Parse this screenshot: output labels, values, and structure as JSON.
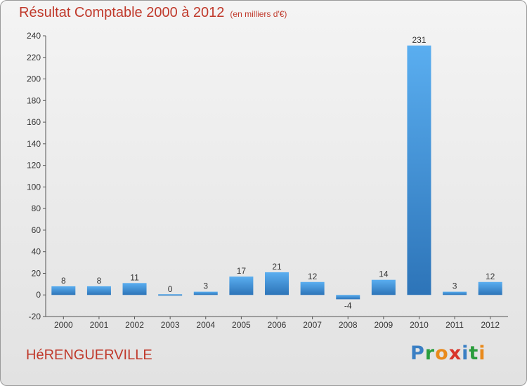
{
  "header": {
    "title": "Résultat Comptable 2000 à 2012",
    "subtitle": "(en milliers d'€)"
  },
  "footer": {
    "commune": "HéRENGUERVILLE",
    "brand": "Proxiti",
    "brand_letters": [
      {
        "char": "P",
        "color": "#3a7fc4"
      },
      {
        "char": "r",
        "color": "#2a9d3c"
      },
      {
        "char": "o",
        "color": "#e98a1c"
      },
      {
        "char": "x",
        "color": "#d9342b"
      },
      {
        "char": "i",
        "color": "#3a7fc4"
      },
      {
        "char": "t",
        "color": "#2a9d3c"
      },
      {
        "char": "i",
        "color": "#e98a1c"
      }
    ]
  },
  "chart_data": {
    "type": "bar",
    "title": "Résultat Comptable 2000 à 2012",
    "subtitle": "(en milliers d'€)",
    "categories": [
      "2000",
      "2001",
      "2002",
      "2003",
      "2004",
      "2005",
      "2006",
      "2007",
      "2008",
      "2009",
      "2010",
      "2011",
      "2012"
    ],
    "values": [
      8,
      8,
      11,
      0,
      3,
      17,
      21,
      12,
      -4,
      14,
      231,
      3,
      12
    ],
    "ylim": [
      -20,
      240
    ],
    "yticks": [
      -20,
      0,
      20,
      40,
      60,
      80,
      100,
      120,
      140,
      160,
      180,
      200,
      220,
      240
    ],
    "grid": false,
    "bar_color": "#3a8ad6"
  }
}
